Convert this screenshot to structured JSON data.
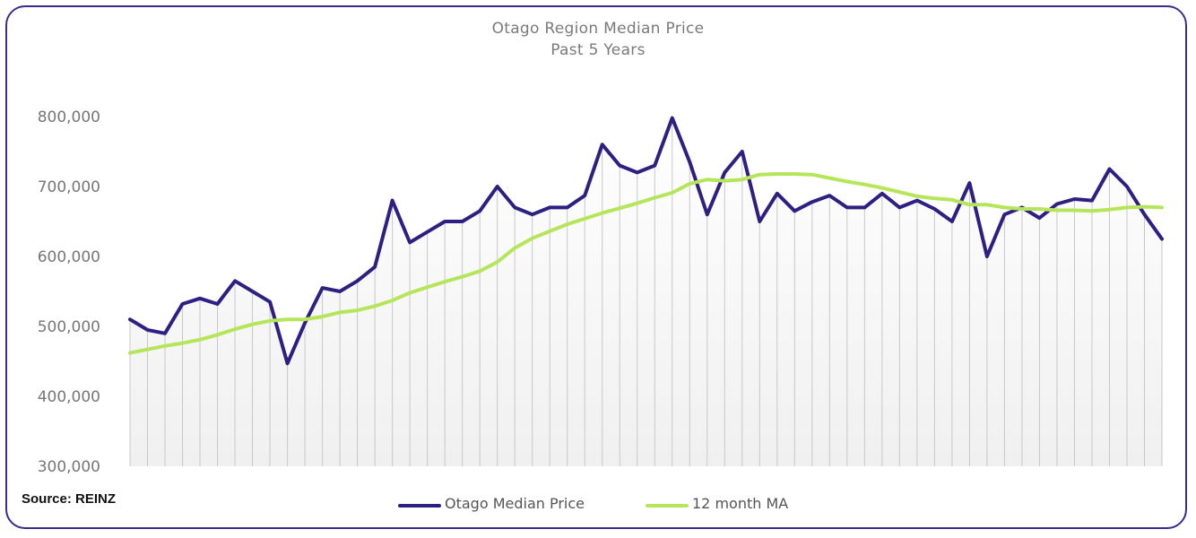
{
  "chart_data": {
    "type": "line",
    "title": "Otago Region Median Price",
    "subtitle": "Past 5 Years",
    "xlabel": "",
    "ylabel": "",
    "ylim": [
      300000,
      800000
    ],
    "y_ticks": [
      "300,000",
      "400,000",
      "500,000",
      "600,000",
      "700,000",
      "800,000"
    ],
    "grid": "vertical drop lines per data point",
    "legend_position": "bottom-center",
    "series": [
      {
        "name": "Otago Median Price",
        "color": "#2e2083",
        "values": [
          510000,
          495000,
          490000,
          532000,
          540000,
          532000,
          565000,
          550000,
          535000,
          447000,
          505000,
          555000,
          550000,
          565000,
          585000,
          680000,
          620000,
          635000,
          650000,
          650000,
          665000,
          700000,
          670000,
          660000,
          670000,
          670000,
          687000,
          760000,
          730000,
          720000,
          730000,
          798000,
          735000,
          660000,
          720000,
          750000,
          650000,
          690000,
          665000,
          678000,
          687000,
          670000,
          670000,
          690000,
          670000,
          680000,
          668000,
          650000,
          705000,
          600000,
          660000,
          670000,
          655000,
          675000,
          682000,
          680000,
          725000,
          700000,
          660000,
          625000
        ]
      },
      {
        "name": "12 month MA",
        "color": "#b5e65a",
        "values": [
          462000,
          467000,
          472000,
          476000,
          481000,
          488000,
          496000,
          503000,
          508000,
          510000,
          510000,
          514000,
          520000,
          523000,
          529000,
          537000,
          548000,
          556000,
          564000,
          571000,
          579000,
          592000,
          612000,
          626000,
          636000,
          646000,
          654000,
          662000,
          669000,
          676000,
          684000,
          691000,
          704000,
          710000,
          708000,
          710000,
          717000,
          718000,
          718000,
          717000,
          712000,
          707000,
          703000,
          698000,
          692000,
          686000,
          683000,
          681000,
          674000,
          674000,
          670000,
          668000,
          668000,
          666000,
          666000,
          665000,
          667000,
          670000,
          671000,
          670000
        ]
      }
    ]
  },
  "footer": {
    "source": "Source: REINZ"
  }
}
